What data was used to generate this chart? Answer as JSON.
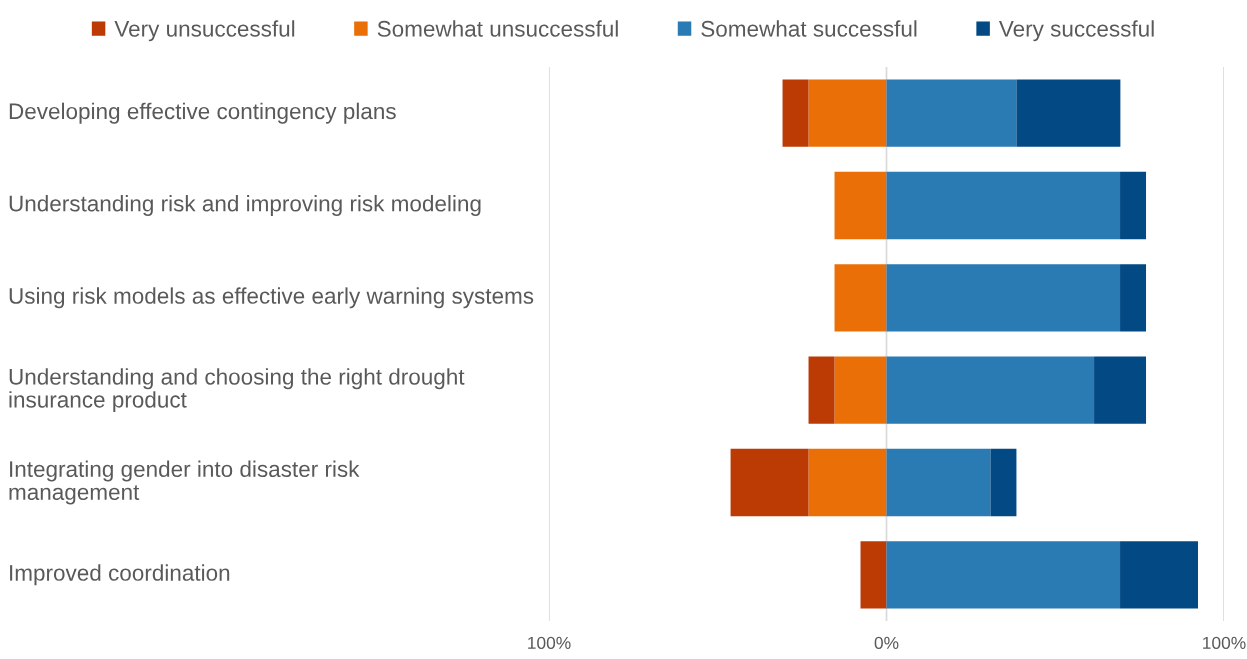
{
  "chart_data": {
    "type": "bar",
    "orientation": "horizontal",
    "stacked": true,
    "categories": [
      "Developing effective contingency plans",
      "Understanding risk and improving risk modeling",
      "Using risk models as effective early warning systems",
      "Understanding and choosing the right drought\ninsurance product",
      "Integrating gender into disaster risk\nmanagement",
      "Improved coordination"
    ],
    "series": [
      {
        "name": "Somewhat unsuccessful",
        "color": "#eb6f07",
        "values": [
          -23.1,
          -15.4,
          -15.4,
          -15.4,
          -23.1,
          null
        ]
      },
      {
        "name": "Very unsuccessful",
        "color": "#bc3a04",
        "values": [
          -7.7,
          null,
          null,
          -7.7,
          -23.1,
          -7.7
        ]
      },
      {
        "name": "Somewhat successful",
        "color": "#2a7ab3",
        "values": [
          38.5,
          69.2,
          69.2,
          61.5,
          30.8,
          69.2
        ]
      },
      {
        "name": "Very successful",
        "color": "#034983",
        "values": [
          30.8,
          7.7,
          7.7,
          15.4,
          7.7,
          23.1
        ]
      }
    ],
    "xlim": [
      -100,
      100
    ],
    "xticks": [
      {
        "value": -100,
        "label": "100%"
      },
      {
        "value": 0,
        "label": "0%"
      },
      {
        "value": 100,
        "label": "100%"
      }
    ],
    "grid": "x",
    "legend": "top"
  }
}
